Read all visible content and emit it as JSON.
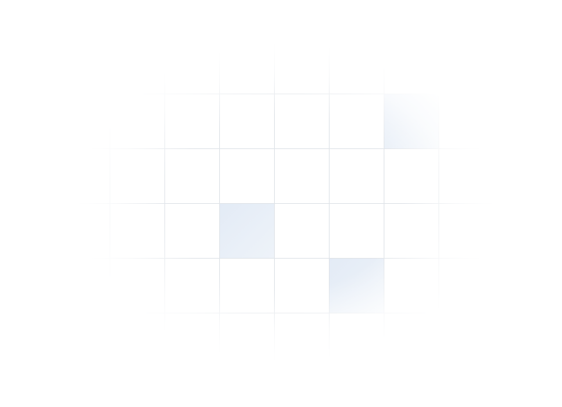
{
  "grid": {
    "columns": 10,
    "rows": 7,
    "line_color": "#dfe3e8",
    "highlight_color": "#e8eff8",
    "highlighted_cells": [
      {
        "row": 1,
        "col": 6
      },
      {
        "row": 3,
        "col": 3
      },
      {
        "row": 4,
        "col": 5
      }
    ]
  }
}
